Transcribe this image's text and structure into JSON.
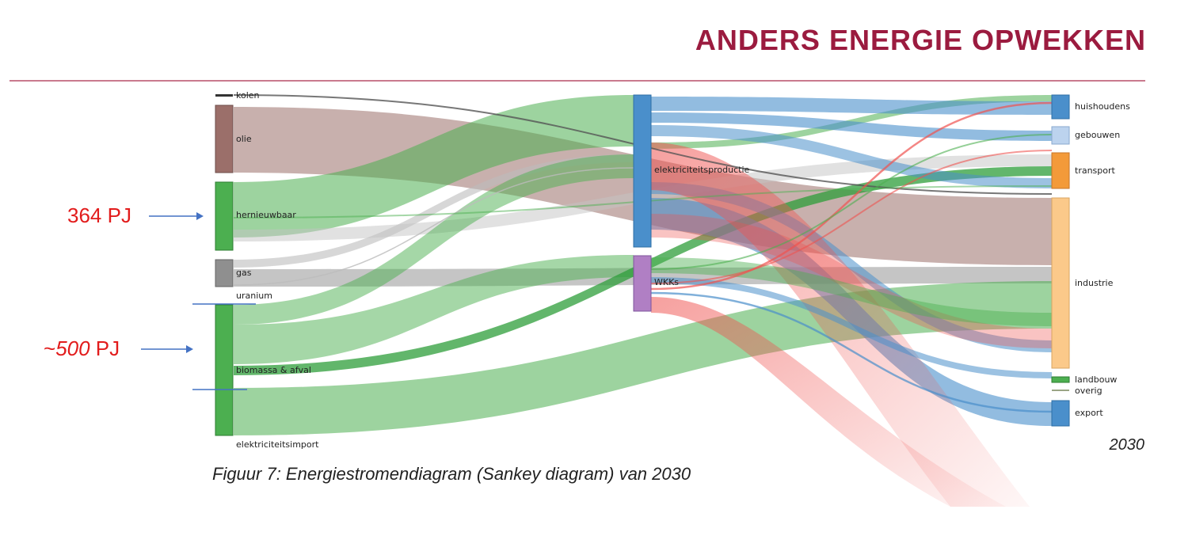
{
  "header": {
    "title": "ANDERS ENERGIE OPWEKKEN"
  },
  "diagram": {
    "source_nodes": [
      {
        "id": "kolen",
        "label": "kolen",
        "color": "#555555"
      },
      {
        "id": "olie",
        "label": "olie",
        "color": "#9b6f6a"
      },
      {
        "id": "hernieuwbaar",
        "label": "hernieuwbaar",
        "color": "#4caf50"
      },
      {
        "id": "gas",
        "label": "gas",
        "color": "#8f8f8f"
      },
      {
        "id": "uranium",
        "label": "uranium",
        "color": "#888888"
      },
      {
        "id": "biomassa",
        "label": "biomassa & afval",
        "color": "#4caf50"
      },
      {
        "id": "import",
        "label": "elektriciteitsimport",
        "color": "#4caf50"
      }
    ],
    "middle_nodes": [
      {
        "id": "elek",
        "label": "elektriciteitsproductie",
        "color": "#4a8fcb"
      },
      {
        "id": "wkk",
        "label": "WKKs",
        "color": "#b07fc4"
      }
    ],
    "sink_nodes": [
      {
        "id": "huishoudens",
        "label": "huishoudens",
        "color": "#4a8fcb"
      },
      {
        "id": "gebouwen",
        "label": "gebouwen",
        "color": "#bcd3ee"
      },
      {
        "id": "transport",
        "label": "transport",
        "color": "#f39a3a"
      },
      {
        "id": "industrie",
        "label": "industrie",
        "color": "#fbc98a"
      },
      {
        "id": "landbouw",
        "label": "landbouw",
        "color": "#4caf50"
      },
      {
        "id": "overig",
        "label": "overig",
        "color": "#9aa585"
      },
      {
        "id": "export",
        "label": "export",
        "color": "#4a8fcb"
      }
    ]
  },
  "annotations": [
    {
      "text": "364 PJ"
    },
    {
      "prefix": "~",
      "value": "500",
      "suffix": " PJ"
    }
  ],
  "caption": "Figuur 7: Energiestromendiagram (Sankey diagram) van 2030",
  "year": "2030",
  "colors": {
    "accent": "#9b1b3f",
    "annotation": "#e21c1c",
    "arrow": "#4472c4"
  }
}
